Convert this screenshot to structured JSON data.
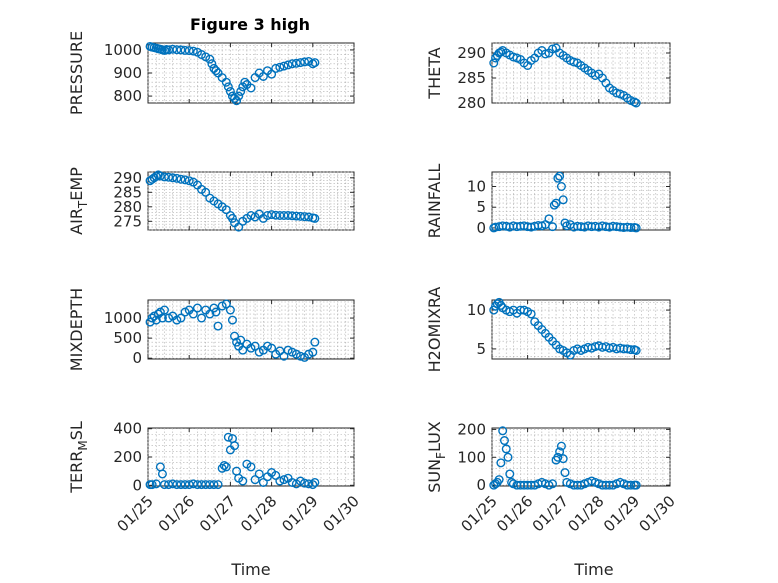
{
  "figure": {
    "title": "Figure 3 high",
    "xlabel": "Time"
  },
  "x_axis": {
    "ticks": [
      "01/25",
      "01/26",
      "01/27",
      "01/28",
      "01/29",
      "01/30"
    ],
    "range_days": [
      0,
      5
    ]
  },
  "chart_data": [
    {
      "type": "scatter",
      "ylabel": "PRESSURE",
      "ylabel_sub": "",
      "ylabel_suffix": "",
      "ylim": [
        770,
        1030
      ],
      "yticks": [
        800,
        900,
        1000
      ],
      "x": [
        0.05,
        0.1,
        0.15,
        0.2,
        0.25,
        0.3,
        0.35,
        0.4,
        0.45,
        0.5,
        0.6,
        0.7,
        0.8,
        0.9,
        1.0,
        1.1,
        1.2,
        1.3,
        1.4,
        1.5,
        1.55,
        1.6,
        1.65,
        1.7,
        1.8,
        1.9,
        1.95,
        2.0,
        2.05,
        2.1,
        2.15,
        2.2,
        2.25,
        2.3,
        2.35,
        2.4,
        2.5,
        2.6,
        2.7,
        2.8,
        2.9,
        3.0,
        3.1,
        3.2,
        3.3,
        3.4,
        3.5,
        3.6,
        3.7,
        3.8,
        3.9,
        4.0,
        4.05
      ],
      "values": [
        1015,
        1012,
        1010,
        1008,
        1005,
        1003,
        1000,
        998,
        1002,
        1000,
        1003,
        1001,
        1000,
        998,
        997,
        995,
        990,
        980,
        970,
        960,
        940,
        920,
        910,
        900,
        880,
        860,
        840,
        820,
        800,
        790,
        780,
        800,
        820,
        840,
        860,
        850,
        835,
        880,
        900,
        885,
        910,
        895,
        920,
        925,
        930,
        935,
        940,
        942,
        945,
        948,
        950,
        940,
        945
      ]
    },
    {
      "type": "scatter",
      "ylabel": "THETA",
      "ylabel_sub": "",
      "ylabel_suffix": "",
      "ylim": [
        280,
        292
      ],
      "yticks": [
        280,
        285,
        290
      ],
      "x": [
        0.05,
        0.1,
        0.15,
        0.2,
        0.25,
        0.3,
        0.4,
        0.5,
        0.6,
        0.7,
        0.8,
        0.9,
        1.0,
        1.1,
        1.2,
        1.3,
        1.4,
        1.5,
        1.6,
        1.7,
        1.8,
        1.9,
        2.0,
        2.1,
        2.2,
        2.3,
        2.4,
        2.5,
        2.6,
        2.7,
        2.8,
        2.9,
        3.0,
        3.1,
        3.2,
        3.3,
        3.4,
        3.5,
        3.6,
        3.7,
        3.8,
        3.9,
        4.0,
        4.05
      ],
      "values": [
        288,
        289,
        289.5,
        290,
        290.2,
        290.5,
        290,
        289.6,
        289.2,
        289,
        288.7,
        288,
        287.5,
        288.5,
        289,
        290,
        290.5,
        289.8,
        290,
        290.8,
        291,
        290,
        289.5,
        289,
        288.5,
        288.2,
        288,
        287.5,
        287,
        286.5,
        286,
        285.5,
        285.8,
        285,
        284,
        283,
        282.5,
        282,
        281.8,
        281.5,
        281,
        280.5,
        280.2,
        280
      ]
    },
    {
      "type": "scatter",
      "ylabel": "AIR",
      "ylabel_sub": "T",
      "ylabel_suffix": "EMP",
      "ylim": [
        272,
        292
      ],
      "yticks": [
        275,
        280,
        285,
        290
      ],
      "x": [
        0.05,
        0.1,
        0.15,
        0.2,
        0.25,
        0.3,
        0.4,
        0.5,
        0.6,
        0.7,
        0.8,
        0.9,
        1.0,
        1.1,
        1.2,
        1.3,
        1.4,
        1.5,
        1.6,
        1.7,
        1.8,
        1.9,
        2.0,
        2.05,
        2.1,
        2.2,
        2.3,
        2.4,
        2.5,
        2.6,
        2.7,
        2.8,
        2.9,
        3.0,
        3.1,
        3.2,
        3.3,
        3.4,
        3.5,
        3.6,
        3.7,
        3.8,
        3.9,
        4.0,
        4.05
      ],
      "values": [
        289,
        289.5,
        290,
        290.5,
        291,
        290.6,
        290.3,
        290.2,
        290,
        289.8,
        289.5,
        289.3,
        289,
        288.5,
        287.5,
        286,
        285,
        283,
        282,
        281,
        280,
        279,
        277,
        276,
        274.5,
        273,
        275,
        276,
        277,
        276.5,
        277.5,
        276,
        277,
        277.3,
        277.1,
        277,
        277,
        277,
        276.9,
        276.8,
        276.7,
        276.6,
        276.5,
        276.2,
        276
      ]
    },
    {
      "type": "scatter",
      "ylabel": "RAINFALL",
      "ylabel_sub": "",
      "ylabel_suffix": "",
      "ylim": [
        -0.5,
        13.5
      ],
      "yticks": [
        0,
        5,
        10
      ],
      "x": [
        0.05,
        0.1,
        0.2,
        0.3,
        0.4,
        0.5,
        0.6,
        0.7,
        0.8,
        0.9,
        1.0,
        1.1,
        1.2,
        1.3,
        1.4,
        1.5,
        1.6,
        1.7,
        1.75,
        1.8,
        1.85,
        1.9,
        1.95,
        2.0,
        2.05,
        2.1,
        2.2,
        2.3,
        2.4,
        2.5,
        2.6,
        2.7,
        2.8,
        2.9,
        3.0,
        3.1,
        3.2,
        3.3,
        3.4,
        3.5,
        3.6,
        3.7,
        3.8,
        3.9,
        4.0,
        4.05
      ],
      "values": [
        0,
        0.2,
        0.3,
        0.5,
        0.4,
        0.2,
        0.5,
        0.3,
        0.4,
        0.5,
        0.3,
        0.2,
        0.4,
        0.6,
        0.5,
        0.8,
        2.2,
        0.3,
        5.5,
        6.0,
        12.0,
        12.5,
        10.0,
        6.8,
        1.2,
        0.5,
        0.8,
        0.2,
        0.4,
        0.3,
        0.2,
        0.5,
        0.3,
        0.4,
        0.2,
        0.5,
        0.3,
        0.2,
        0.4,
        0.3,
        0.2,
        0.1,
        0.2,
        0.1,
        0.1,
        0
      ]
    },
    {
      "type": "scatter",
      "ylabel": "MIXDEPTH",
      "ylabel_sub": "",
      "ylabel_suffix": "",
      "ylim": [
        -20,
        1450
      ],
      "yticks": [
        0,
        500,
        1000
      ],
      "x": [
        0.05,
        0.1,
        0.15,
        0.2,
        0.25,
        0.3,
        0.35,
        0.4,
        0.5,
        0.6,
        0.7,
        0.8,
        0.9,
        1.0,
        1.1,
        1.2,
        1.3,
        1.4,
        1.5,
        1.6,
        1.65,
        1.7,
        1.8,
        1.9,
        2.0,
        2.05,
        2.1,
        2.15,
        2.2,
        2.25,
        2.3,
        2.4,
        2.5,
        2.6,
        2.7,
        2.8,
        2.9,
        3.0,
        3.1,
        3.2,
        3.3,
        3.4,
        3.5,
        3.6,
        3.7,
        3.8,
        3.9,
        4.0,
        4.05
      ],
      "values": [
        900,
        1000,
        1050,
        950,
        1100,
        1150,
        1000,
        1200,
        1000,
        1050,
        950,
        1000,
        1150,
        1200,
        1100,
        1250,
        1000,
        1200,
        1100,
        1250,
        1150,
        800,
        1300,
        1350,
        1200,
        950,
        550,
        400,
        300,
        450,
        200,
        350,
        250,
        300,
        150,
        200,
        300,
        250,
        100,
        180,
        50,
        200,
        150,
        100,
        50,
        20,
        100,
        150,
        400
      ]
    },
    {
      "type": "scatter",
      "ylabel": "H2OMIXRA",
      "ylabel_sub": "",
      "ylabel_suffix": "",
      "ylim": [
        3.7,
        11.3
      ],
      "yticks": [
        5,
        10
      ],
      "x": [
        0.05,
        0.1,
        0.15,
        0.2,
        0.25,
        0.3,
        0.4,
        0.5,
        0.6,
        0.7,
        0.8,
        0.9,
        1.0,
        1.1,
        1.2,
        1.3,
        1.4,
        1.5,
        1.6,
        1.7,
        1.8,
        1.9,
        2.0,
        2.1,
        2.2,
        2.3,
        2.4,
        2.5,
        2.6,
        2.7,
        2.8,
        2.9,
        3.0,
        3.1,
        3.2,
        3.3,
        3.4,
        3.5,
        3.6,
        3.7,
        3.8,
        3.9,
        4.0,
        4.05
      ],
      "values": [
        10,
        10.5,
        10.8,
        11,
        10.6,
        10.3,
        10.0,
        9.8,
        10.0,
        9.6,
        10.0,
        10.0,
        9.8,
        9.5,
        8.5,
        8.0,
        7.5,
        7.0,
        6.5,
        6.0,
        5.5,
        5.0,
        4.8,
        4.5,
        4.2,
        4.8,
        5.0,
        4.8,
        5.0,
        5.2,
        5.1,
        5.3,
        5.4,
        5.2,
        5.3,
        5.1,
        5.2,
        5.0,
        5.1,
        5.0,
        5.0,
        4.9,
        4.9,
        4.8
      ]
    },
    {
      "type": "scatter",
      "ylabel": "TERR",
      "ylabel_sub": "M",
      "ylabel_suffix": "SL",
      "ylim": [
        -5,
        405
      ],
      "yticks": [
        0,
        200,
        400
      ],
      "x": [
        0.05,
        0.1,
        0.2,
        0.3,
        0.35,
        0.4,
        0.5,
        0.6,
        0.7,
        0.8,
        0.9,
        1.0,
        1.1,
        1.2,
        1.3,
        1.4,
        1.5,
        1.6,
        1.7,
        1.8,
        1.85,
        1.9,
        1.95,
        2.0,
        2.05,
        2.1,
        2.15,
        2.2,
        2.3,
        2.4,
        2.5,
        2.6,
        2.7,
        2.8,
        2.9,
        3.0,
        3.1,
        3.2,
        3.3,
        3.4,
        3.5,
        3.6,
        3.7,
        3.8,
        3.9,
        4.0,
        4.05
      ],
      "values": [
        5,
        5,
        10,
        130,
        80,
        5,
        5,
        10,
        5,
        5,
        5,
        5,
        10,
        5,
        5,
        5,
        5,
        5,
        5,
        120,
        140,
        130,
        340,
        250,
        330,
        280,
        100,
        50,
        30,
        150,
        130,
        40,
        80,
        20,
        60,
        90,
        70,
        30,
        40,
        50,
        20,
        10,
        30,
        15,
        10,
        5,
        20
      ]
    },
    {
      "type": "scatter",
      "ylabel": "SUN",
      "ylabel_sub": "F",
      "ylabel_suffix": "LUX",
      "ylim": [
        -3,
        205
      ],
      "yticks": [
        0,
        100,
        200
      ],
      "x": [
        0.05,
        0.1,
        0.15,
        0.2,
        0.25,
        0.3,
        0.35,
        0.4,
        0.45,
        0.5,
        0.55,
        0.6,
        0.7,
        0.8,
        0.9,
        1.0,
        1.1,
        1.2,
        1.3,
        1.4,
        1.5,
        1.6,
        1.7,
        1.8,
        1.85,
        1.9,
        1.95,
        2.0,
        2.05,
        2.1,
        2.2,
        2.3,
        2.4,
        2.5,
        2.6,
        2.7,
        2.8,
        2.9,
        3.0,
        3.1,
        3.2,
        3.3,
        3.4,
        3.5,
        3.6,
        3.7,
        3.8,
        3.9,
        4.0,
        4.05
      ],
      "values": [
        0,
        5,
        10,
        20,
        80,
        195,
        160,
        130,
        100,
        40,
        10,
        5,
        0,
        0,
        0,
        0,
        0,
        0,
        5,
        10,
        5,
        0,
        5,
        90,
        100,
        120,
        140,
        95,
        45,
        10,
        5,
        0,
        0,
        0,
        5,
        10,
        15,
        10,
        5,
        0,
        0,
        0,
        0,
        5,
        10,
        5,
        0,
        0,
        0,
        0
      ]
    }
  ]
}
